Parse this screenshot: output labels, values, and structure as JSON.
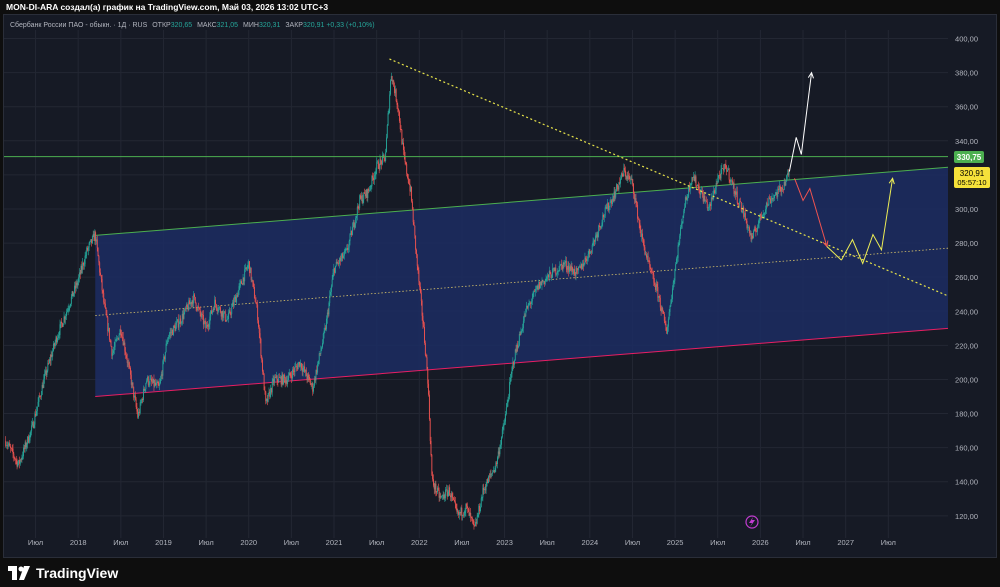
{
  "header": {
    "text": "MON-DI-ARA создал(а) график на TradingView.com, Май 03, 2026 13:02 UTC+3"
  },
  "legend": {
    "symbol": "Сбербанк России ПАО - обыкн. · 1Д · RUS",
    "open_label": "ОТКР",
    "open_value": "320,65",
    "high_label": "МАКС",
    "high_value": "321,05",
    "low_label": "МИН",
    "low_value": "320,31",
    "close_label": "ЗАКР",
    "close_value": "320,91",
    "change": "+0,33 (+0,10%)"
  },
  "badges": {
    "level_price": "330,75",
    "last_price": "320,91",
    "countdown": "05:57:10"
  },
  "brand": {
    "logo_text": "TradingView"
  },
  "colors": {
    "background": "#161a25",
    "bull": "#26a69a",
    "bear": "#ef5350",
    "channel_fill": "#1c2d63",
    "channel_top": "#4caf50",
    "channel_bottom": "#e91e63",
    "trend": "#e8e44a",
    "projection_white": "#ffffff",
    "projection_red": "#ef5350",
    "projection_yellow": "#eeee55",
    "level_line": "#4caf50"
  },
  "chart_data": {
    "type": "candlestick",
    "y_ticks": [
      "400,00",
      "380,00",
      "360,00",
      "340,00",
      "320,00",
      "300,00",
      "280,00",
      "260,00",
      "240,00",
      "220,00",
      "200,00",
      "180,00",
      "160,00",
      "140,00",
      "120,00"
    ],
    "y_tick_values": [
      400,
      380,
      360,
      340,
      320,
      300,
      280,
      260,
      240,
      220,
      200,
      180,
      160,
      140,
      120
    ],
    "ylim": [
      107,
      405
    ],
    "x_ticks": [
      "Июл",
      "2018",
      "Июл",
      "2019",
      "Июл",
      "2020",
      "Июл",
      "2021",
      "Июл",
      "2022",
      "Июл",
      "2023",
      "Июл",
      "2024",
      "Июл",
      "2025",
      "Июл",
      "2026",
      "Июл",
      "2027",
      "Июл"
    ],
    "x_tick_values": [
      2017.5,
      2018,
      2018.5,
      2019,
      2019.5,
      2020,
      2020.5,
      2021,
      2021.5,
      2022,
      2022.5,
      2023,
      2023.5,
      2024,
      2024.5,
      2025,
      2025.5,
      2026,
      2026.5,
      2027,
      2027.5
    ],
    "xlim": [
      2017.13,
      2028.2
    ],
    "price_path": [
      [
        2017.15,
        164
      ],
      [
        2017.3,
        150
      ],
      [
        2017.45,
        170
      ],
      [
        2017.6,
        200
      ],
      [
        2017.75,
        225
      ],
      [
        2017.9,
        245
      ],
      [
        2018.0,
        258
      ],
      [
        2018.1,
        275
      ],
      [
        2018.2,
        285
      ],
      [
        2018.3,
        245
      ],
      [
        2018.4,
        215
      ],
      [
        2018.5,
        230
      ],
      [
        2018.6,
        205
      ],
      [
        2018.7,
        178
      ],
      [
        2018.8,
        200
      ],
      [
        2018.95,
        195
      ],
      [
        2019.05,
        225
      ],
      [
        2019.2,
        235
      ],
      [
        2019.35,
        248
      ],
      [
        2019.5,
        230
      ],
      [
        2019.6,
        245
      ],
      [
        2019.75,
        235
      ],
      [
        2019.9,
        255
      ],
      [
        2020.0,
        268
      ],
      [
        2020.1,
        240
      ],
      [
        2020.2,
        185
      ],
      [
        2020.3,
        200
      ],
      [
        2020.45,
        200
      ],
      [
        2020.6,
        210
      ],
      [
        2020.75,
        195
      ],
      [
        2020.9,
        230
      ],
      [
        2021.0,
        265
      ],
      [
        2021.15,
        275
      ],
      [
        2021.3,
        305
      ],
      [
        2021.4,
        310
      ],
      [
        2021.5,
        325
      ],
      [
        2021.6,
        330
      ],
      [
        2021.67,
        380
      ],
      [
        2021.75,
        360
      ],
      [
        2021.82,
        330
      ],
      [
        2021.9,
        310
      ],
      [
        2021.97,
        270
      ],
      [
        2022.05,
        230
      ],
      [
        2022.1,
        200
      ],
      [
        2022.15,
        140
      ],
      [
        2022.25,
        130
      ],
      [
        2022.35,
        135
      ],
      [
        2022.45,
        120
      ],
      [
        2022.55,
        125
      ],
      [
        2022.65,
        112
      ],
      [
        2022.75,
        135
      ],
      [
        2022.9,
        150
      ],
      [
        2023.0,
        175
      ],
      [
        2023.1,
        210
      ],
      [
        2023.25,
        240
      ],
      [
        2023.4,
        255
      ],
      [
        2023.55,
        262
      ],
      [
        2023.7,
        268
      ],
      [
        2023.85,
        262
      ],
      [
        2024.0,
        275
      ],
      [
        2024.15,
        295
      ],
      [
        2024.3,
        310
      ],
      [
        2024.4,
        322
      ],
      [
        2024.5,
        315
      ],
      [
        2024.6,
        285
      ],
      [
        2024.7,
        265
      ],
      [
        2024.8,
        250
      ],
      [
        2024.9,
        228
      ],
      [
        2025.0,
        265
      ],
      [
        2025.1,
        300
      ],
      [
        2025.2,
        320
      ],
      [
        2025.3,
        310
      ],
      [
        2025.4,
        300
      ],
      [
        2025.5,
        318
      ],
      [
        2025.6,
        325
      ],
      [
        2025.7,
        310
      ],
      [
        2025.8,
        298
      ],
      [
        2025.9,
        282
      ],
      [
        2026.0,
        295
      ],
      [
        2026.1,
        305
      ],
      [
        2026.25,
        312
      ],
      [
        2026.34,
        320.9
      ]
    ],
    "channel": {
      "upper": [
        [
          2018.2,
          284.5
        ],
        [
          2028.2,
          324.5
        ]
      ],
      "lower": [
        [
          2018.2,
          190
        ],
        [
          2028.2,
          230
        ]
      ],
      "middle": [
        [
          2018.2,
          237.5
        ],
        [
          2028.2,
          277
        ]
      ]
    },
    "trendline": [
      [
        2021.65,
        388
      ],
      [
        2028.2,
        249
      ]
    ],
    "resistance_level": 330.75,
    "projections": {
      "up": [
        [
          2026.34,
          322
        ],
        [
          2026.42,
          342
        ],
        [
          2026.48,
          332
        ],
        [
          2026.6,
          380
        ]
      ],
      "red": [
        [
          2026.4,
          318
        ],
        [
          2026.5,
          305
        ],
        [
          2026.58,
          312
        ],
        [
          2026.78,
          278
        ]
      ],
      "yellow": [
        [
          2026.95,
          270
        ],
        [
          2027.08,
          282
        ],
        [
          2027.2,
          268
        ],
        [
          2027.32,
          285
        ],
        [
          2027.42,
          276
        ],
        [
          2027.55,
          318
        ]
      ],
      "red_2": [
        [
          2026.78,
          278
        ],
        [
          2026.95,
          270
        ]
      ]
    }
  }
}
